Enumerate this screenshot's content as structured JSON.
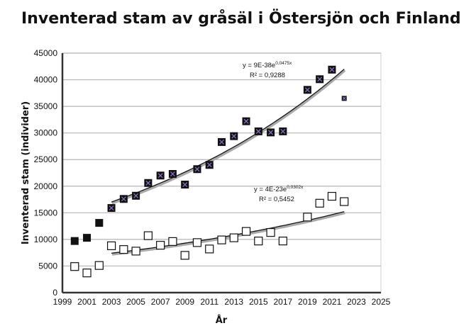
{
  "chart_data": {
    "type": "scatter",
    "title": "Inventerad stam av gråsäl i Östersjön och Finland",
    "xlabel": "År",
    "ylabel": "Inventerad stam (individer)",
    "xlim": [
      1999,
      2025
    ],
    "ylim": [
      0,
      45000
    ],
    "xticks": [
      1999,
      2001,
      2003,
      2005,
      2007,
      2009,
      2011,
      2013,
      2015,
      2017,
      2019,
      2021,
      2023,
      2025
    ],
    "yticks": [
      0,
      5000,
      10000,
      15000,
      20000,
      25000,
      30000,
      35000,
      40000,
      45000
    ],
    "grid": "horizontal",
    "legend": "none",
    "series": [
      {
        "marker": "filled-square-x",
        "color": "#111111",
        "points": [
          [
            2000,
            9700
          ],
          [
            2001,
            10300
          ],
          [
            2002,
            13100
          ],
          [
            2003,
            15900
          ],
          [
            2004,
            17600
          ],
          [
            2005,
            18200
          ],
          [
            2006,
            20600
          ],
          [
            2007,
            22000
          ],
          [
            2008,
            22300
          ],
          [
            2009,
            20300
          ],
          [
            2010,
            23200
          ],
          [
            2011,
            24000
          ],
          [
            2012,
            28300
          ],
          [
            2013,
            29400
          ],
          [
            2014,
            32200
          ],
          [
            2015,
            30300
          ],
          [
            2016,
            30100
          ],
          [
            2017,
            30300
          ],
          [
            2019,
            38100
          ],
          [
            2020,
            40100
          ],
          [
            2021,
            41900
          ],
          [
            2022,
            36500
          ]
        ],
        "trendline": {
          "type": "exponential",
          "range": [
            2003,
            2022
          ],
          "equation": "y = 9E-38e",
          "exponent": "0,0475x",
          "r2": "R² = 0,9288"
        }
      },
      {
        "marker": "open-square",
        "color": "#111111",
        "points": [
          [
            2000,
            4900
          ],
          [
            2001,
            3700
          ],
          [
            2002,
            5100
          ],
          [
            2003,
            8800
          ],
          [
            2004,
            8100
          ],
          [
            2005,
            7800
          ],
          [
            2006,
            10700
          ],
          [
            2007,
            8900
          ],
          [
            2008,
            9600
          ],
          [
            2009,
            7000
          ],
          [
            2010,
            9400
          ],
          [
            2011,
            8200
          ],
          [
            2012,
            9900
          ],
          [
            2013,
            10300
          ],
          [
            2014,
            11500
          ],
          [
            2015,
            9700
          ],
          [
            2016,
            11300
          ],
          [
            2017,
            9700
          ],
          [
            2019,
            14200
          ],
          [
            2020,
            16800
          ],
          [
            2021,
            18100
          ],
          [
            2022,
            17100
          ]
        ],
        "trendline": {
          "type": "exponential",
          "range": [
            2003,
            2022
          ],
          "equation": "y = 4E-23e",
          "exponent": "0,0302x",
          "r2": "R² = 0,5452"
        }
      }
    ]
  }
}
